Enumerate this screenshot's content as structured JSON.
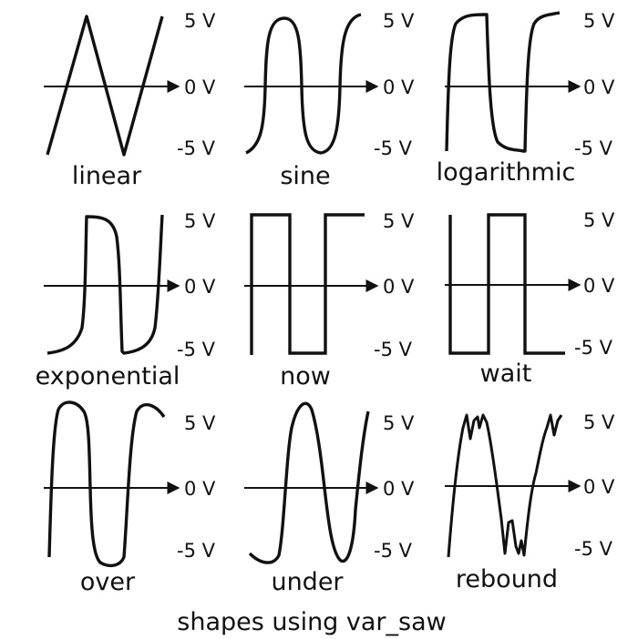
{
  "figure": {
    "caption": "shapes using var_saw",
    "volt_labels": {
      "top": "5 V",
      "mid": "0 V",
      "bottom": "-5 V"
    },
    "panels": [
      {
        "id": "linear",
        "name": "linear"
      },
      {
        "id": "sine",
        "name": "sine"
      },
      {
        "id": "logarithmic",
        "name": "logarithmic"
      },
      {
        "id": "exponential",
        "name": "exponential"
      },
      {
        "id": "now",
        "name": "now"
      },
      {
        "id": "wait",
        "name": "wait"
      },
      {
        "id": "over",
        "name": "over"
      },
      {
        "id": "under",
        "name": "under"
      },
      {
        "id": "rebound",
        "name": "rebound"
      }
    ],
    "colors": {
      "stroke": "#111111",
      "background": "#ffffff"
    }
  }
}
